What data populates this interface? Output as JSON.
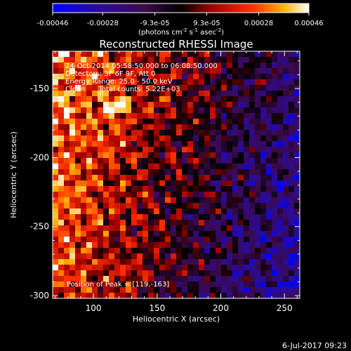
{
  "chart_data": {
    "type": "heatmap",
    "title": "Reconstructed RHESSI Image",
    "xlabel": "Heliocentric X (arcsec)",
    "ylabel": "Heliocentric Y (arcsec)",
    "xlim": [
      68,
      262
    ],
    "ylim": [
      -302,
      -123
    ],
    "x_ticks": [
      100,
      150,
      200,
      250
    ],
    "y_ticks": [
      -150,
      -200,
      -250,
      -300
    ],
    "colorbar": {
      "ticks": [
        {
          "value": -0.00046,
          "label": "-0.00046"
        },
        {
          "value": -0.00028,
          "label": "-0.00028"
        },
        {
          "value": -9.3e-05,
          "label": "-9.3e-05"
        },
        {
          "value": 9.3e-05,
          "label": "9.3e-05"
        },
        {
          "value": 0.00028,
          "label": "0.00028"
        },
        {
          "value": 0.00046,
          "label": "0.00046"
        }
      ],
      "range": [
        -0.00046,
        0.00046
      ],
      "unit_label": "(photons cm",
      "unit_exp1": "-2",
      "unit_mid": " s",
      "unit_exp2": "-1",
      "unit_end": " asec",
      "unit_exp3": "-2",
      "unit_close": ")"
    },
    "annotations": [
      "24-Oct-2014 05:58:50.000 to 06:08:50.000",
      "Detectors: 3F 6F 9F, Att 0",
      "Energy Range: 25.0 - 50.0 keV",
      "Clean      Total counts: 5.22E+03"
    ],
    "peak_label": "Position of Peak = [119,-163]",
    "peak": {
      "x": 119,
      "y": -163
    }
  },
  "footer": {
    "date": "6-Jul-2017 09:23"
  }
}
